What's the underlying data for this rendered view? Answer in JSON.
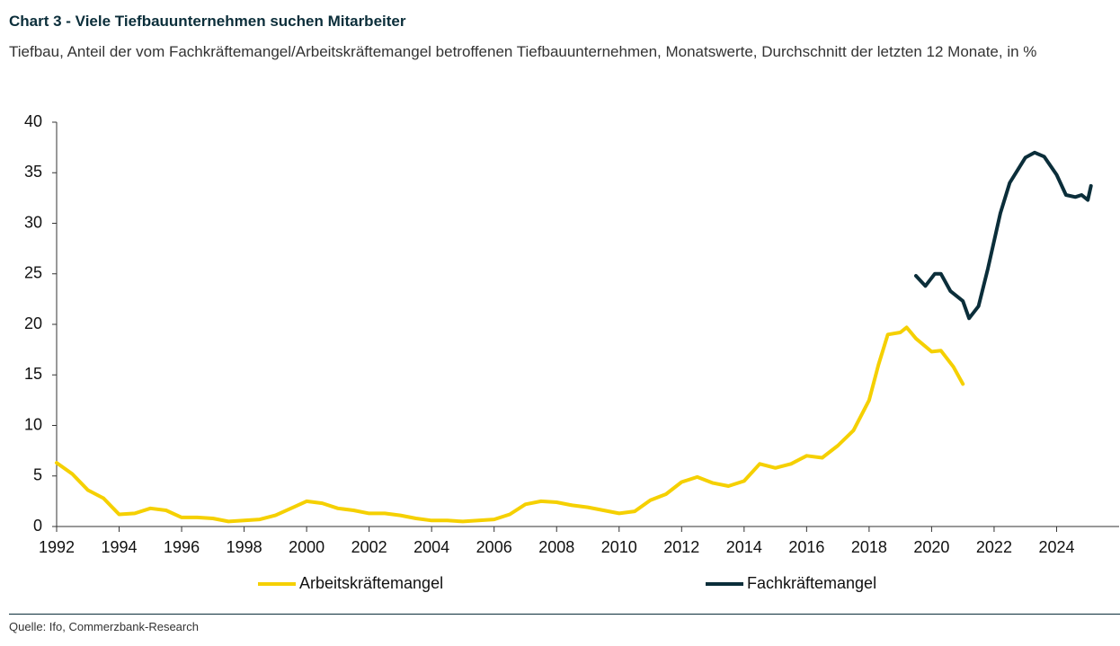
{
  "chart_data": {
    "type": "line",
    "title": "Chart 3 - Viele Tiefbauunternehmen suchen Mitarbeiter",
    "subtitle": "Tiefbau, Anteil der vom Fachkräftemangel/Arbeitskräftemangel betroffenen Tiefbauunternehmen, Monatswerte, Durchschnitt der letzten 12 Monate, in %",
    "source": "Quelle: Ifo, Commerzbank-Research",
    "xlim": [
      1992,
      2026
    ],
    "xticks": [
      1992,
      1994,
      1996,
      1998,
      2000,
      2002,
      2004,
      2006,
      2008,
      2010,
      2012,
      2014,
      2016,
      2018,
      2020,
      2022,
      2024
    ],
    "ylim": [
      0,
      40
    ],
    "yticks": [
      0,
      5,
      10,
      15,
      20,
      25,
      30,
      35,
      40
    ],
    "grid": false,
    "legend": "bottom",
    "series": [
      {
        "name": "Arbeitskräftemangel",
        "color": "#f5d000",
        "x": [
          1992,
          1992.5,
          1993,
          1993.5,
          1994,
          1994.5,
          1995,
          1995.5,
          1996,
          1996.5,
          1997,
          1997.5,
          1998,
          1998.5,
          1999,
          1999.5,
          2000,
          2000.5,
          2001,
          2001.5,
          2002,
          2002.5,
          2003,
          2003.5,
          2004,
          2004.5,
          2005,
          2005.5,
          2006,
          2006.5,
          2007,
          2007.5,
          2008,
          2008.5,
          2009,
          2009.5,
          2010,
          2010.5,
          2011,
          2011.5,
          2012,
          2012.5,
          2013,
          2013.5,
          2014,
          2014.5,
          2015,
          2015.5,
          2016,
          2016.5,
          2017,
          2017.5,
          2018,
          2018.3,
          2018.6,
          2019,
          2019.2,
          2019.5,
          2020,
          2020.3,
          2020.7,
          2021
        ],
        "values": [
          6.3,
          5.2,
          3.6,
          2.8,
          1.2,
          1.3,
          1.8,
          1.6,
          0.9,
          0.9,
          0.8,
          0.5,
          0.6,
          0.7,
          1.1,
          1.8,
          2.5,
          2.3,
          1.8,
          1.6,
          1.3,
          1.3,
          1.1,
          0.8,
          0.6,
          0.6,
          0.5,
          0.6,
          0.7,
          1.2,
          2.2,
          2.5,
          2.4,
          2.1,
          1.9,
          1.6,
          1.3,
          1.5,
          2.6,
          3.2,
          4.4,
          4.9,
          4.3,
          4.0,
          4.5,
          6.2,
          5.8,
          6.2,
          7.0,
          6.8,
          8.0,
          9.5,
          12.5,
          16,
          19.0,
          19.2,
          19.7,
          18.6,
          17.3,
          17.4,
          15.8,
          14.1
        ]
      },
      {
        "name": "Fachkräftemangel",
        "color": "#0b2e3a",
        "x": [
          2019.5,
          2019.8,
          2020.1,
          2020.3,
          2020.6,
          2021,
          2021.2,
          2021.5,
          2021.8,
          2022.2,
          2022.5,
          2023,
          2023.3,
          2023.6,
          2024,
          2024.3,
          2024.6,
          2024.8,
          2025,
          2025.1
        ],
        "values": [
          24.8,
          23.8,
          25.0,
          25.0,
          23.3,
          22.3,
          20.6,
          21.8,
          25.5,
          31,
          34,
          36.5,
          37.0,
          36.6,
          34.8,
          32.8,
          32.6,
          32.8,
          32.3,
          33.7
        ]
      }
    ]
  }
}
